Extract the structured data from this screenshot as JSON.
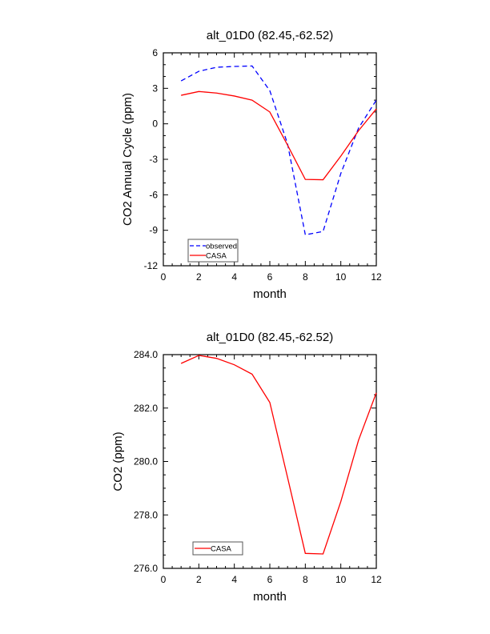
{
  "chart_data": [
    {
      "type": "line",
      "title": "alt_01D0 (82.45,-62.52)",
      "xlabel": "month",
      "ylabel": "CO2 Annual Cycle (ppm)",
      "xlim": [
        0,
        12
      ],
      "ylim": [
        -12,
        6
      ],
      "xticks": [
        0,
        2,
        4,
        6,
        8,
        10,
        12
      ],
      "xtick_labels": [
        "0",
        "2",
        "4",
        "6",
        "8",
        "10",
        "12"
      ],
      "yticks": [
        -12,
        -9,
        -6,
        -3,
        0,
        3,
        6
      ],
      "ytick_labels": [
        "-12",
        "-9",
        "-6",
        "-3",
        "0",
        "3",
        "6"
      ],
      "grid": false,
      "legend_position": "bottom-left",
      "x": [
        1,
        2,
        3,
        4,
        5,
        6,
        7,
        8,
        9,
        10,
        11,
        12
      ],
      "series": [
        {
          "name": "observed",
          "color": "#0000ff",
          "dash": true,
          "values": [
            3.63,
            4.44,
            4.78,
            4.85,
            4.89,
            2.8,
            -1.7,
            -9.38,
            -9.1,
            -4.2,
            -0.36,
            2.0
          ]
        },
        {
          "name": "CASA",
          "color": "#ff0000",
          "dash": false,
          "values": [
            2.41,
            2.73,
            2.6,
            2.35,
            2.0,
            1.0,
            -1.8,
            -4.7,
            -4.73,
            -2.73,
            -0.58,
            1.26
          ]
        }
      ]
    },
    {
      "type": "line",
      "title": "alt_01D0 (82.45,-62.52)",
      "xlabel": "month",
      "ylabel": "CO2 (ppm)",
      "xlim": [
        0,
        12
      ],
      "ylim": [
        276,
        284
      ],
      "xticks": [
        0,
        2,
        4,
        6,
        8,
        10,
        12
      ],
      "xtick_labels": [
        "0",
        "2",
        "4",
        "6",
        "8",
        "10",
        "12"
      ],
      "yticks": [
        276,
        278,
        280,
        282,
        284
      ],
      "ytick_labels": [
        "276.0",
        "278.0",
        "280.0",
        "282.0",
        "284.0"
      ],
      "grid": false,
      "legend_position": "bottom-left",
      "x": [
        1,
        2,
        3,
        4,
        5,
        6,
        7,
        8,
        9,
        10,
        11,
        12
      ],
      "series": [
        {
          "name": "CASA",
          "color": "#ff0000",
          "dash": false,
          "values": [
            283.67,
            283.97,
            283.86,
            283.62,
            283.27,
            282.21,
            279.4,
            276.56,
            276.54,
            278.5,
            280.8,
            282.57
          ]
        }
      ]
    }
  ]
}
